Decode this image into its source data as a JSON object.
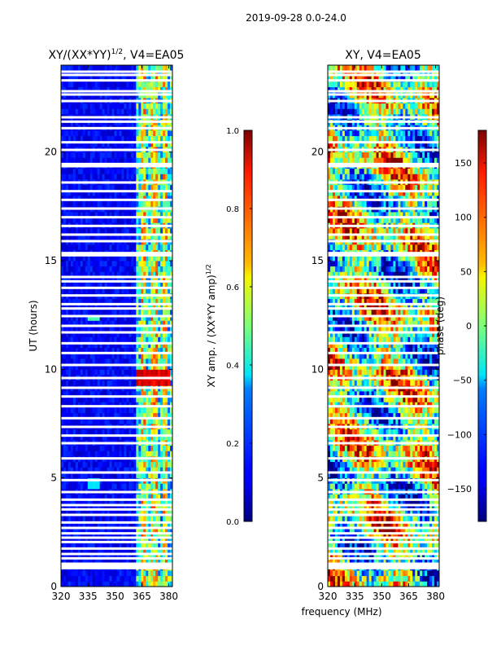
{
  "figure_title": "2019-09-28 0.0-24.0",
  "xlabel": "frequency (MHz)",
  "chart_data": [
    {
      "type": "heatmap",
      "title_main": "XY/(XX*YY)",
      "title_sup": "1/2",
      "title_rest": ", V4=EA05",
      "ylabel": "UT (hours)",
      "xlim": [
        320,
        382
      ],
      "ylim": [
        0,
        24
      ],
      "xticks": [
        320,
        335,
        350,
        365,
        380
      ],
      "yticks": [
        0,
        5,
        10,
        15,
        20
      ],
      "colorbar": {
        "label_main": "XY amp. / (XX*YY amp)",
        "label_sup": "1/2",
        "range": [
          0.0,
          1.0
        ],
        "ticks": [
          "0.0",
          "0.2",
          "0.4",
          "0.6",
          "0.8",
          "1.0"
        ],
        "tick_values": [
          0.0,
          0.2,
          0.4,
          0.6,
          0.8,
          1.0
        ]
      },
      "colormap": "jet",
      "flagged_ut_hours": [
        0.85,
        0.95,
        1.05,
        1.3,
        1.5,
        1.75,
        2.05,
        2.25,
        2.45,
        2.7,
        2.95,
        3.3,
        3.55,
        3.75,
        4.0,
        4.35,
        4.9,
        5.25,
        5.9,
        6.6,
        6.95,
        7.35,
        7.75,
        8.3,
        8.75,
        9.15,
        9.6,
        10.2,
        10.75,
        11.2,
        11.7,
        12.0,
        12.45,
        12.8,
        13.0,
        13.4,
        13.75,
        14.05,
        14.25,
        15.25,
        15.35,
        15.9,
        16.2,
        16.6,
        17.0,
        17.4,
        17.8,
        18.2,
        18.6,
        19.35,
        19.45,
        20.1,
        20.45,
        21.1,
        21.4,
        21.6,
        22.35,
        22.65,
        22.8,
        23.3,
        23.55,
        23.7
      ]
    },
    {
      "type": "heatmap",
      "title_main": "XY, V4=EA05",
      "xlim": [
        320,
        382
      ],
      "ylim": [
        0,
        24
      ],
      "xticks": [
        320,
        335,
        350,
        365,
        380
      ],
      "yticks": [
        0,
        5,
        10,
        15,
        20
      ],
      "colorbar": {
        "label_main": "phase (deg)",
        "range": [
          -180,
          180
        ],
        "ticks": [
          "−150",
          "−100",
          "−50",
          "0",
          "50",
          "100",
          "150"
        ],
        "tick_values": [
          -150,
          -100,
          -50,
          0,
          50,
          100,
          150
        ]
      },
      "colormap": "jet",
      "flagged_ut_hours": [
        0.85,
        0.95,
        1.05,
        1.3,
        1.5,
        1.75,
        2.05,
        2.25,
        2.45,
        2.7,
        2.95,
        3.3,
        3.55,
        3.75,
        4.0,
        4.35,
        4.9,
        5.25,
        5.9,
        6.6,
        6.95,
        7.35,
        7.75,
        8.3,
        8.75,
        9.15,
        9.6,
        10.2,
        10.75,
        11.2,
        11.7,
        12.0,
        12.45,
        12.8,
        13.0,
        13.4,
        13.75,
        14.05,
        14.25,
        15.25,
        15.35,
        15.9,
        16.2,
        16.6,
        17.0,
        17.4,
        17.8,
        18.2,
        18.6,
        19.35,
        19.45,
        20.1,
        20.45,
        21.1,
        21.4,
        21.6,
        22.35,
        22.65,
        22.8,
        23.3,
        23.55,
        23.7
      ]
    }
  ]
}
